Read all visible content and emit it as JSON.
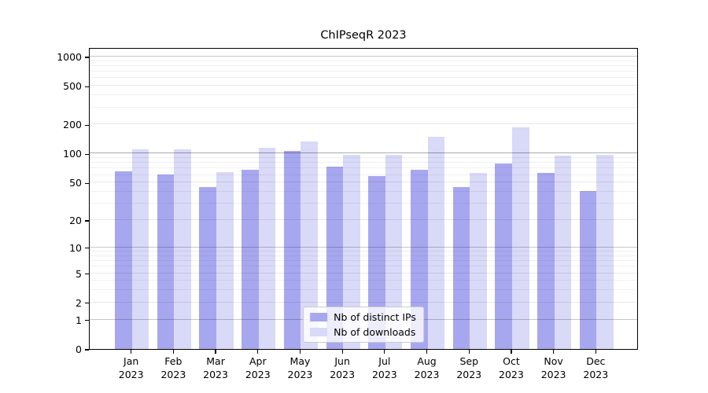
{
  "title": "ChIPseqR 2023",
  "chart_data": {
    "type": "bar",
    "title": "ChIPseqR 2023",
    "categories": [
      "Jan 2023",
      "Feb 2023",
      "Mar 2023",
      "Apr 2023",
      "May 2023",
      "Jun 2023",
      "Jul 2023",
      "Aug 2023",
      "Sep 2023",
      "Oct 2023",
      "Nov 2023",
      "Dec 2023"
    ],
    "months": [
      "Jan",
      "Feb",
      "Mar",
      "Apr",
      "May",
      "Jun",
      "Jul",
      "Aug",
      "Sep",
      "Oct",
      "Nov",
      "Dec"
    ],
    "year_label": "2023",
    "series": [
      {
        "name": "Nb of distinct IPs",
        "color": "#a7a7f0",
        "values": [
          66,
          61,
          45,
          68,
          107,
          74,
          58,
          68,
          45,
          79,
          63,
          41
        ]
      },
      {
        "name": "Nb of downloads",
        "color": "#d9d9f8",
        "values": [
          110,
          110,
          64,
          114,
          134,
          97,
          97,
          150,
          63,
          188,
          95,
          98
        ]
      }
    ],
    "y_axis": {
      "scale": "log1p",
      "ticks": [
        0,
        1,
        2,
        5,
        10,
        20,
        50,
        100,
        200,
        500,
        1000
      ],
      "range": [
        0,
        1200
      ]
    },
    "legend": {
      "position": "lower center",
      "entries": [
        "Nb of distinct IPs",
        "Nb of downloads"
      ]
    },
    "grid": true
  }
}
